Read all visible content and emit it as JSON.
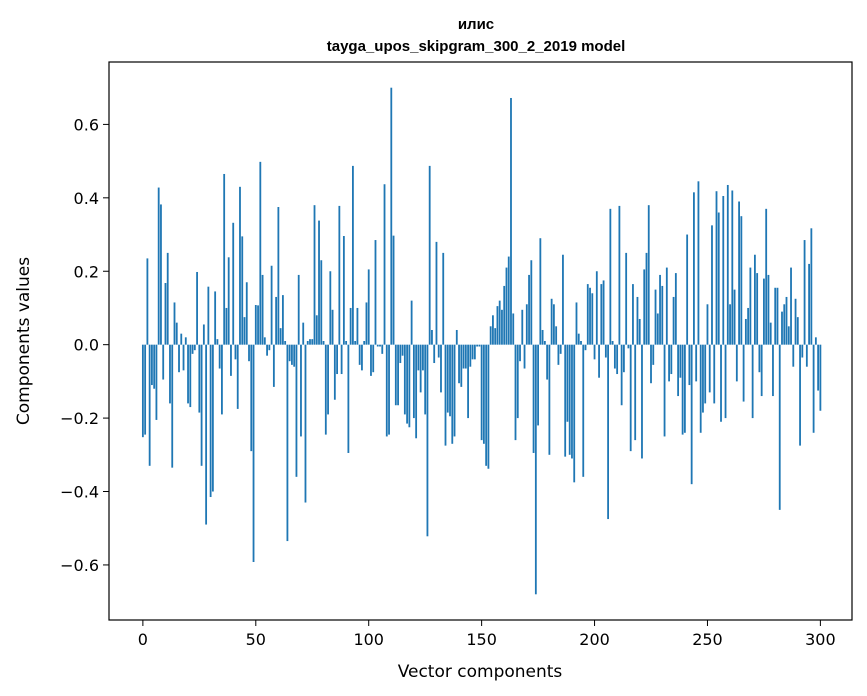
{
  "chart_data": {
    "type": "bar",
    "title": "илис",
    "subtitle": "tayga_upos_skipgram_300_2_2019 model",
    "xlabel": "Vector components",
    "ylabel": "Components values",
    "xlim": [
      -15,
      314
    ],
    "ylim": [
      -0.75,
      0.77
    ],
    "xticks": [
      0,
      50,
      100,
      150,
      200,
      250,
      300
    ],
    "xtick_labels": [
      "0",
      "50",
      "100",
      "150",
      "200",
      "250",
      "300"
    ],
    "yticks": [
      -0.6,
      -0.4,
      -0.2,
      0.0,
      0.2,
      0.4,
      0.6
    ],
    "ytick_labels": [
      "−0.6",
      "−0.4",
      "−0.2",
      "0.0",
      "0.2",
      "0.4",
      "0.6"
    ],
    "grid": false,
    "bar_color": "#1f77b4",
    "values": [
      -0.252,
      -0.245,
      0.235,
      -0.33,
      -0.11,
      -0.12,
      -0.205,
      0.428,
      0.382,
      -0.095,
      0.168,
      0.25,
      -0.16,
      -0.335,
      0.115,
      0.06,
      -0.075,
      0.03,
      -0.07,
      0.02,
      -0.16,
      -0.17,
      -0.025,
      -0.015,
      0.198,
      -0.185,
      -0.33,
      0.055,
      -0.49,
      0.158,
      -0.415,
      -0.4,
      0.145,
      0.015,
      -0.065,
      -0.19,
      0.465,
      0.1,
      0.238,
      -0.085,
      0.332,
      -0.04,
      -0.175,
      0.43,
      0.295,
      0.075,
      0.17,
      -0.045,
      -0.29,
      -0.592,
      0.108,
      0.107,
      0.498,
      0.19,
      0.02,
      -0.03,
      -0.015,
      0.215,
      -0.115,
      0.13,
      0.375,
      0.045,
      0.135,
      0.01,
      -0.535,
      -0.045,
      -0.055,
      -0.06,
      -0.36,
      0.19,
      -0.25,
      0.06,
      -0.43,
      0.01,
      0.015,
      0.015,
      0.38,
      0.08,
      0.338,
      0.23,
      0.01,
      -0.245,
      -0.19,
      0.2,
      0.095,
      -0.15,
      -0.08,
      0.378,
      -0.08,
      0.296,
      0.01,
      -0.295,
      0.1,
      0.487,
      0.01,
      0.1,
      -0.055,
      -0.07,
      0.01,
      0.115,
      0.205,
      -0.085,
      -0.075,
      0.285,
      -0.005,
      -0.005,
      -0.025,
      0.437,
      -0.25,
      -0.245,
      0.7,
      0.297,
      -0.165,
      -0.165,
      -0.05,
      -0.03,
      -0.19,
      -0.215,
      -0.225,
      0.12,
      -0.2,
      -0.255,
      -0.07,
      -0.13,
      -0.07,
      -0.19,
      -0.522,
      0.487,
      0.04,
      -0.05,
      0.28,
      -0.035,
      -0.13,
      0.25,
      -0.275,
      -0.185,
      -0.195,
      -0.27,
      -0.25,
      0.04,
      -0.105,
      -0.115,
      -0.065,
      -0.065,
      -0.2,
      -0.06,
      -0.04,
      -0.04,
      -0.005,
      -0.005,
      -0.26,
      -0.27,
      -0.33,
      -0.338,
      0.05,
      0.08,
      0.045,
      0.105,
      0.12,
      0.095,
      0.16,
      0.21,
      0.24,
      0.672,
      0.085,
      -0.26,
      -0.2,
      -0.045,
      0.095,
      -0.065,
      0.11,
      0.19,
      0.23,
      -0.295,
      -0.68,
      -0.22,
      0.29,
      0.04,
      0.01,
      -0.095,
      -0.3,
      0.125,
      0.11,
      0.05,
      -0.055,
      -0.025,
      0.245,
      -0.305,
      -0.21,
      -0.3,
      -0.31,
      -0.375,
      0.115,
      0.03,
      0.01,
      -0.36,
      -0.015,
      0.165,
      0.155,
      0.14,
      -0.04,
      0.2,
      -0.09,
      0.165,
      0.175,
      -0.035,
      -0.475,
      0.37,
      0.01,
      -0.065,
      -0.08,
      0.378,
      -0.165,
      -0.075,
      0.25,
      -0.01,
      -0.29,
      0.165,
      -0.26,
      0.13,
      0.07,
      -0.31,
      0.205,
      0.25,
      0.38,
      -0.105,
      -0.055,
      0.15,
      0.085,
      0.19,
      0.16,
      -0.25,
      0.21,
      -0.1,
      -0.08,
      0.13,
      0.195,
      -0.14,
      -0.09,
      -0.245,
      -0.24,
      0.3,
      -0.11,
      -0.38,
      0.415,
      -0.1,
      0.445,
      -0.24,
      -0.185,
      -0.16,
      0.11,
      -0.13,
      0.325,
      -0.16,
      0.418,
      0.36,
      -0.21,
      0.405,
      -0.2,
      0.435,
      0.11,
      0.42,
      0.15,
      -0.1,
      0.39,
      0.35,
      -0.155,
      0.07,
      0.1,
      0.21,
      -0.2,
      0.245,
      0.195,
      -0.075,
      -0.14,
      0.18,
      0.37,
      0.19,
      0.06,
      -0.14,
      0.155,
      0.155,
      -0.45,
      0.09,
      0.11,
      0.13,
      0.05,
      0.21,
      -0.06,
      0.125,
      0.075,
      -0.275,
      -0.035,
      0.285,
      -0.06,
      0.22,
      0.317,
      -0.24,
      0.02,
      -0.125,
      -0.18
    ]
  }
}
